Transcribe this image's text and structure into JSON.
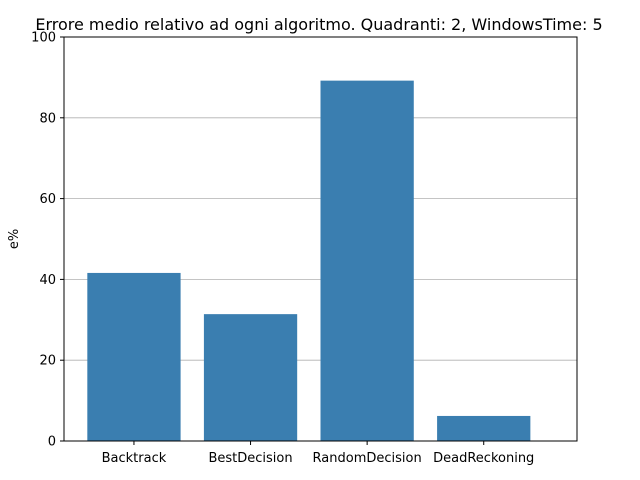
{
  "chart_data": {
    "type": "bar",
    "title": "Errore medio relativo ad ogni algoritmo. Quadranti: 2, WindowsTime: 5",
    "xlabel": "",
    "ylabel": "e%",
    "categories": [
      "Backtrack",
      "BestDecision",
      "RandomDecision",
      "DeadReckoning"
    ],
    "values": [
      41.6,
      31.4,
      89.2,
      6.2
    ],
    "ylim": [
      0,
      100
    ],
    "yticks": [
      0,
      20,
      40,
      60,
      80,
      100
    ],
    "grid": "horizontal",
    "bar_color": "#3a7eb0",
    "grid_color": "#b0b0b0"
  }
}
